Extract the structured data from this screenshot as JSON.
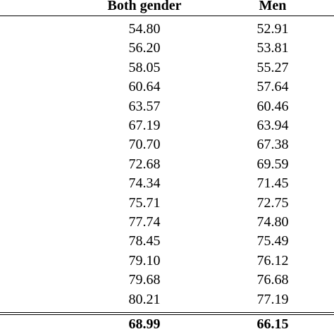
{
  "table": {
    "headers": [
      "Both gender",
      "Men"
    ],
    "rows": [
      [
        "54.80",
        "52.91"
      ],
      [
        "56.20",
        "53.81"
      ],
      [
        "58.05",
        "55.27"
      ],
      [
        "60.64",
        "57.64"
      ],
      [
        "63.57",
        "60.46"
      ],
      [
        "67.19",
        "63.94"
      ],
      [
        "70.70",
        "67.38"
      ],
      [
        "72.68",
        "69.59"
      ],
      [
        "74.34",
        "71.45"
      ],
      [
        "75.71",
        "72.75"
      ],
      [
        "77.74",
        "74.80"
      ],
      [
        "78.45",
        "75.49"
      ],
      [
        "79.10",
        "76.12"
      ],
      [
        "79.68",
        "76.68"
      ],
      [
        "80.21",
        "77.19"
      ]
    ],
    "total": [
      "68.99",
      "66.15"
    ]
  }
}
